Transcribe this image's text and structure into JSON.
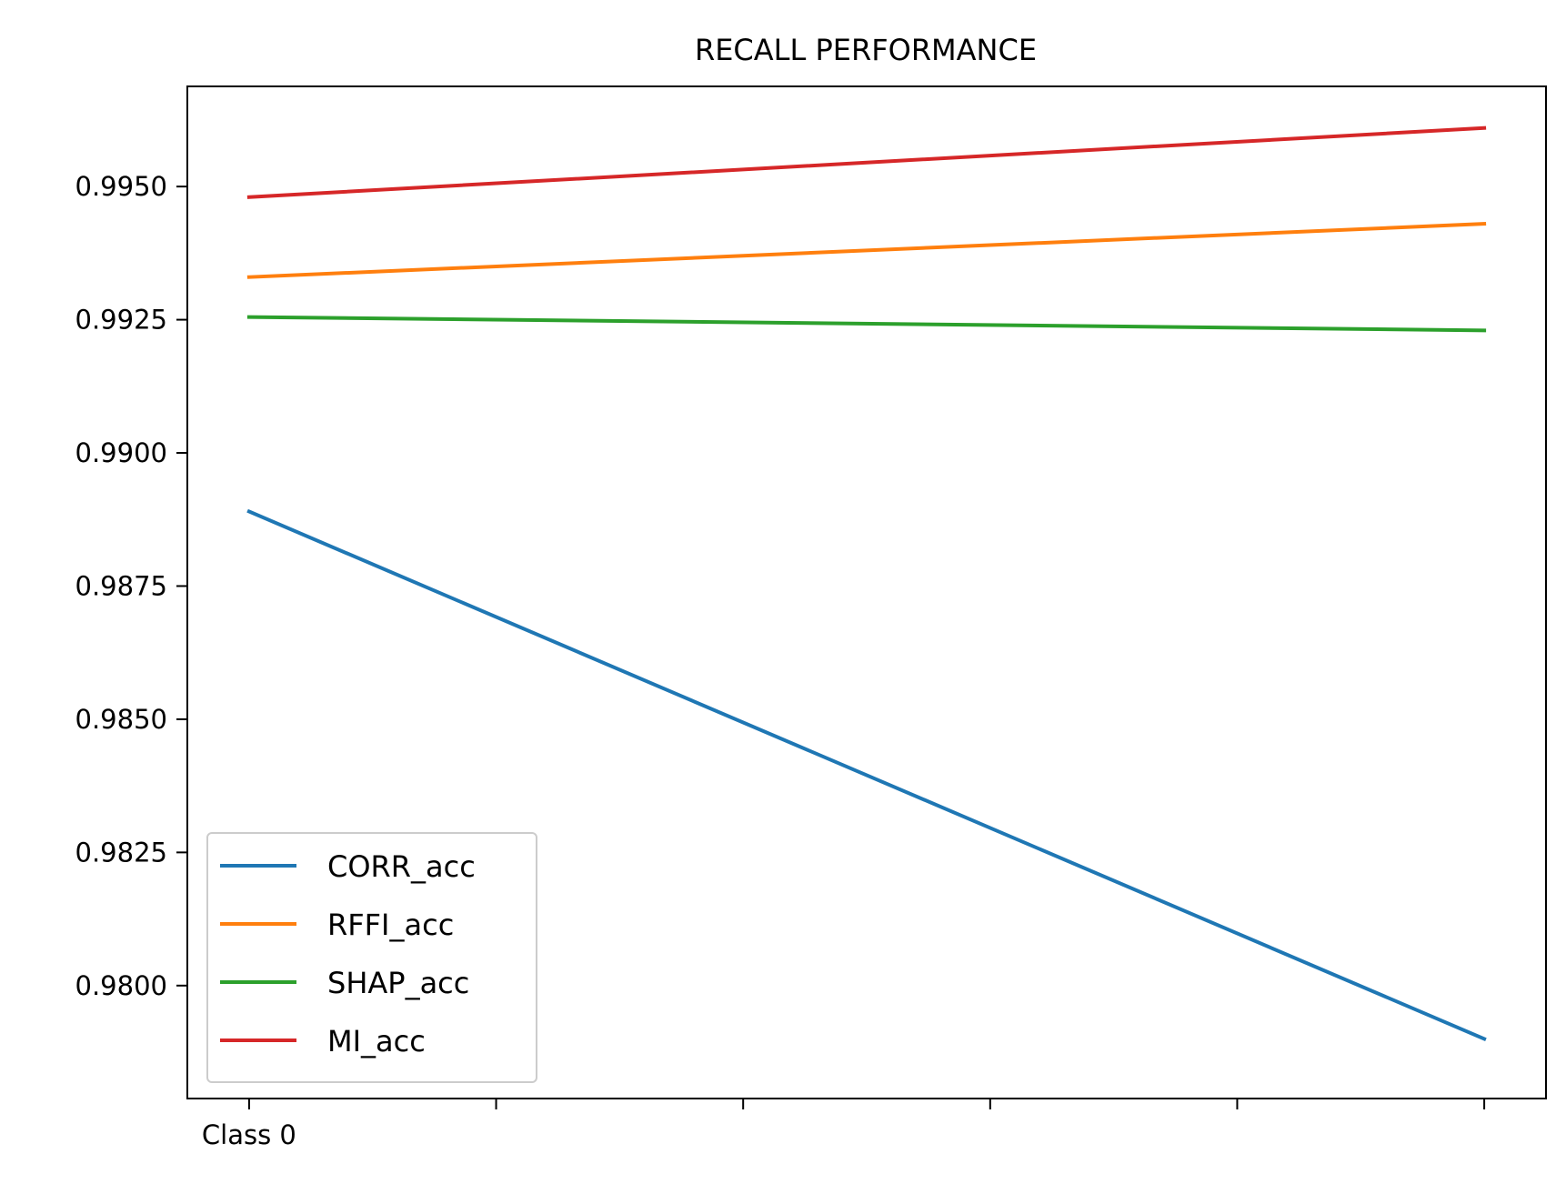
{
  "chart_data": {
    "type": "line",
    "title": "RECALL PERFORMANCE",
    "xlabel": "",
    "ylabel": "",
    "x": [
      0,
      1,
      2,
      3,
      4,
      5
    ],
    "x_tick_labels": [
      "Class 0",
      "",
      "",
      "",
      "",
      ""
    ],
    "xlim": [
      -0.25,
      5.25
    ],
    "ylim": [
      0.97788,
      0.99688
    ],
    "y_ticks": [
      0.98,
      0.9825,
      0.985,
      0.9875,
      0.99,
      0.9925,
      0.995
    ],
    "y_tick_labels": [
      "0.9800",
      "0.9825",
      "0.9850",
      "0.9875",
      "0.9900",
      "0.9925",
      "0.9950"
    ],
    "grid": false,
    "legend_position": "lower-left",
    "series": [
      {
        "name": "CORR_acc",
        "color": "#1f77b4",
        "points": [
          [
            0,
            0.9889
          ],
          [
            5,
            0.979
          ]
        ]
      },
      {
        "name": "RFFI_acc",
        "color": "#ff7f0e",
        "points": [
          [
            0,
            0.9933
          ],
          [
            5,
            0.9943
          ]
        ]
      },
      {
        "name": "SHAP_acc",
        "color": "#2ca02c",
        "points": [
          [
            0,
            0.99255
          ],
          [
            5,
            0.9923
          ]
        ]
      },
      {
        "name": "MI_acc",
        "color": "#d62728",
        "points": [
          [
            0,
            0.9948
          ],
          [
            5,
            0.9961
          ]
        ]
      }
    ]
  }
}
